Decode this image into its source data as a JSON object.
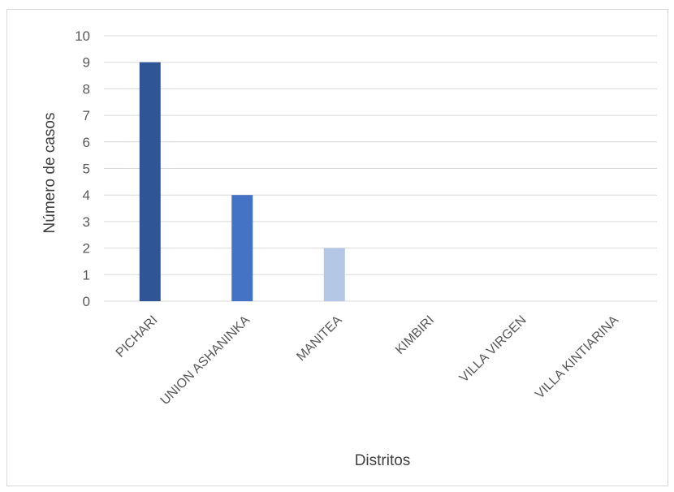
{
  "chart_data": {
    "type": "bar",
    "title": "",
    "xlabel": "Distritos",
    "ylabel": "Número de casos",
    "categories": [
      "PICHARI",
      "UNION ASHANINKA",
      "MANITEA",
      "KIMBIRI",
      "VILLA VIRGEN",
      "VILLA KINTIARINA"
    ],
    "values": [
      9,
      4,
      2,
      0,
      0,
      0
    ],
    "ylim": [
      0,
      10
    ],
    "yticks": [
      0,
      1,
      2,
      3,
      4,
      5,
      6,
      7,
      8,
      9,
      10
    ],
    "grid": true,
    "legend": "none",
    "colors": [
      "#2f5597",
      "#4472c4",
      "#b4c7e7",
      "#b4c7e7",
      "#b4c7e7",
      "#b4c7e7"
    ],
    "gridline_color": "#d9d9d9"
  }
}
